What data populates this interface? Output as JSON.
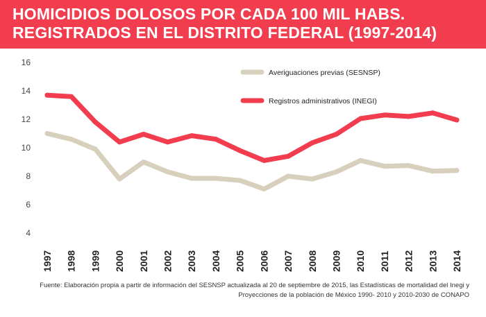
{
  "header": {
    "title_line1": "HOMICIDIOS DOLOSOS POR CADA 100 MIL HABS.",
    "title_line2": "REGISTRADOS EN EL DISTRITO FEDERAL (1997-2014)",
    "background_color": "#f23d4f"
  },
  "source": {
    "text": "Fuente: Elaboración propia a partir de información del SESNSP actualizada al 20 de septiembre de 2015, las Estadísticas de mortalidad del Inegi  y Proyecciones de la población de México 1990- 2010 y 2010-2030 de CONAPO"
  },
  "chart_data": {
    "type": "line",
    "title": "HOMICIDIOS DOLOSOS POR CADA 100 MIL HABS. REGISTRADOS EN EL DISTRITO FEDERAL (1997-2014)",
    "xlabel": "",
    "ylabel": "",
    "ylim": [
      4,
      16
    ],
    "yticks": [
      4,
      6,
      8,
      10,
      12,
      14,
      16
    ],
    "grid": false,
    "legend_position": "top-right",
    "categories": [
      "1997",
      "1998",
      "1999",
      "2000",
      "2001",
      "2002",
      "2003",
      "2004",
      "2005",
      "2006",
      "2007",
      "2008",
      "2009",
      "2010",
      "2011",
      "2012",
      "2013",
      "2014"
    ],
    "series": [
      {
        "name": "Averiguaciones previas (SESNSP)",
        "color": "#d6d0bc",
        "values": [
          11.0,
          10.6,
          9.9,
          7.8,
          9.0,
          8.3,
          7.85,
          7.85,
          7.7,
          7.1,
          8.0,
          7.8,
          8.3,
          9.1,
          8.7,
          8.75,
          8.35,
          8.4
        ]
      },
      {
        "name": "Registros administrativos (INEGI)",
        "color": "#f23d4f",
        "values": [
          13.7,
          13.6,
          11.8,
          10.4,
          10.95,
          10.4,
          10.85,
          10.6,
          9.8,
          9.1,
          9.4,
          10.35,
          10.95,
          12.05,
          12.3,
          12.2,
          12.45,
          11.95
        ]
      }
    ]
  }
}
